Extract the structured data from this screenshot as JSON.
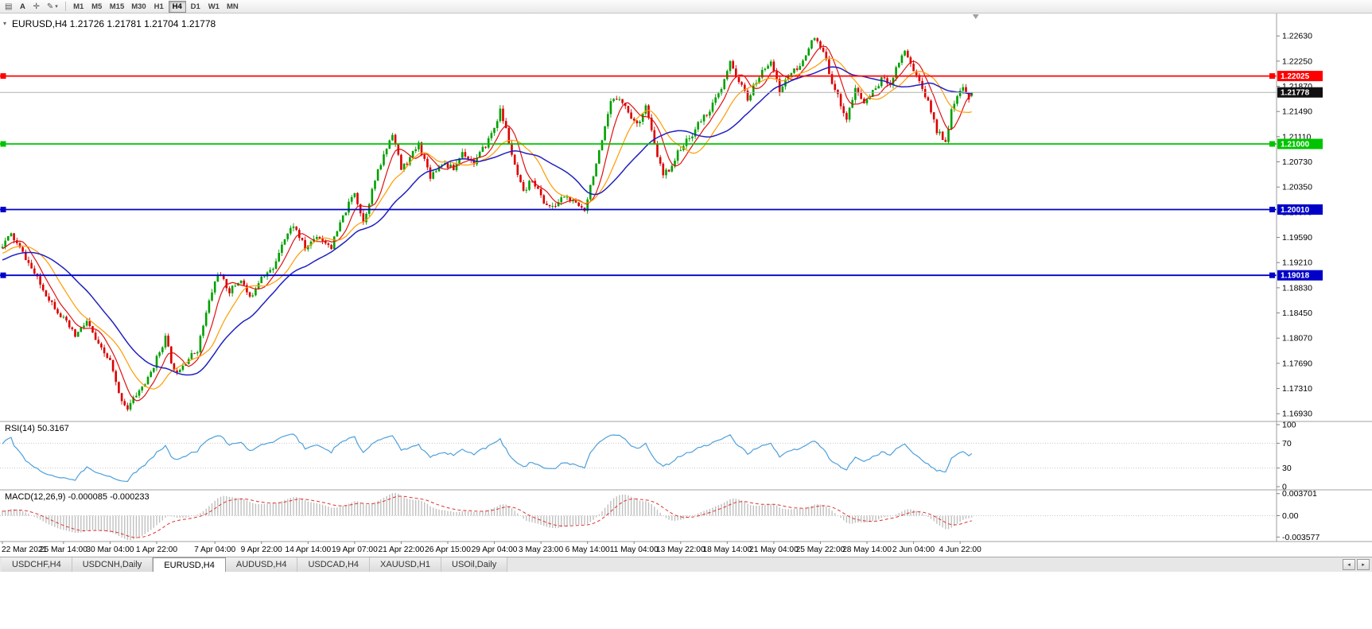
{
  "toolbar": {
    "icons": [
      {
        "name": "chart-windows-icon",
        "glyph": "▤"
      },
      {
        "name": "annotate-icon",
        "glyph": "A"
      },
      {
        "name": "crosshair-icon",
        "glyph": "✛"
      },
      {
        "name": "pencil-icon",
        "glyph": "✎"
      },
      {
        "name": "chevron-down-icon",
        "glyph": "▾"
      }
    ],
    "timeframes": [
      "M1",
      "M5",
      "M15",
      "M30",
      "H1",
      "H4",
      "D1",
      "W1",
      "MN"
    ],
    "active_timeframe": "H4"
  },
  "chart": {
    "caret_glyph": "▾",
    "title": "EURUSD,H4 1.21726 1.21781 1.21704 1.21778",
    "rsi_label": "RSI(14) 50.3167",
    "macd_label": "MACD(12,26,9) -0.000085 -0.000233"
  },
  "chart_data": {
    "type": "candlestick",
    "symbol": "EURUSD",
    "timeframe": "H4",
    "last_candle": {
      "open": 1.21726,
      "high": 1.21781,
      "low": 1.21704,
      "close": 1.21778
    },
    "current_price": {
      "value": 1.21778,
      "label": "1.21778"
    },
    "visible_price_range": [
      1.16813,
      1.22968
    ],
    "price_scale_ticks": [
      "1.22630",
      "1.22250",
      "1.21870",
      "1.21490",
      "1.21110",
      "1.20730",
      "1.20350",
      "1.19970",
      "1.19590",
      "1.19210",
      "1.18830",
      "1.18450",
      "1.18070",
      "1.17690",
      "1.17310",
      "1.16930"
    ],
    "levels": [
      {
        "value": 1.22025,
        "label": "1.22025",
        "color": "#ff0000"
      },
      {
        "value": 1.21,
        "label": "1.21000",
        "color": "#00c400"
      },
      {
        "value": 1.2001,
        "label": "1.20010",
        "color": "#0000c8"
      },
      {
        "value": 1.19018,
        "label": "1.19018",
        "color": "#0000c8"
      }
    ],
    "candle_colors": {
      "up": "#00a000",
      "down": "#dc0000"
    },
    "moving_averages": [
      {
        "period": 7,
        "color": "#e01010",
        "width": 1.2
      },
      {
        "period": 15,
        "color": "#ff9c00",
        "width": 1.2
      },
      {
        "period": 28,
        "color": "#2020c0",
        "width": 1.5
      }
    ],
    "bars_total": 334,
    "prehistory_bars": 60,
    "seed": 11,
    "price_path_anchors": [
      [
        -60,
        1.1885
      ],
      [
        -45,
        1.1925
      ],
      [
        -30,
        1.1898
      ],
      [
        -15,
        1.1922
      ],
      [
        0,
        1.1948
      ],
      [
        3,
        1.1963
      ],
      [
        8,
        1.1928
      ],
      [
        14,
        1.188
      ],
      [
        20,
        1.1842
      ],
      [
        25,
        1.181
      ],
      [
        29,
        1.1832
      ],
      [
        33,
        1.1795
      ],
      [
        37,
        1.1772
      ],
      [
        40,
        1.1722
      ],
      [
        43,
        1.1701
      ],
      [
        46,
        1.1722
      ],
      [
        50,
        1.1745
      ],
      [
        56,
        1.1808
      ],
      [
        59,
        1.1755
      ],
      [
        63,
        1.1772
      ],
      [
        67,
        1.179
      ],
      [
        71,
        1.1862
      ],
      [
        74,
        1.1906
      ],
      [
        78,
        1.1878
      ],
      [
        82,
        1.1896
      ],
      [
        85,
        1.1866
      ],
      [
        89,
        1.1902
      ],
      [
        93,
        1.191
      ],
      [
        96,
        1.1952
      ],
      [
        100,
        1.1978
      ],
      [
        104,
        1.1942
      ],
      [
        108,
        1.1962
      ],
      [
        113,
        1.1945
      ],
      [
        117,
        1.199
      ],
      [
        121,
        1.2028
      ],
      [
        124,
        1.1982
      ],
      [
        128,
        1.2045
      ],
      [
        131,
        1.2082
      ],
      [
        134,
        1.2118
      ],
      [
        137,
        1.2062
      ],
      [
        140,
        1.2078
      ],
      [
        143,
        1.21
      ],
      [
        147,
        1.2052
      ],
      [
        151,
        1.2072
      ],
      [
        155,
        1.2062
      ],
      [
        158,
        1.2088
      ],
      [
        162,
        1.2072
      ],
      [
        166,
        1.2098
      ],
      [
        169,
        1.2125
      ],
      [
        171,
        1.215
      ],
      [
        173,
        1.2122
      ],
      [
        176,
        1.2065
      ],
      [
        179,
        1.2025
      ],
      [
        182,
        1.2048
      ],
      [
        186,
        1.2012
      ],
      [
        189,
        1.2003
      ],
      [
        193,
        1.2022
      ],
      [
        197,
        1.2008
      ],
      [
        200,
        1.2002
      ],
      [
        203,
        1.2055
      ],
      [
        206,
        1.2102
      ],
      [
        209,
        1.2162
      ],
      [
        212,
        1.2172
      ],
      [
        215,
        1.2148
      ],
      [
        218,
        1.2128
      ],
      [
        221,
        1.2158
      ],
      [
        224,
        1.2098
      ],
      [
        227,
        1.2052
      ],
      [
        230,
        1.2068
      ],
      [
        233,
        1.2095
      ],
      [
        236,
        1.2108
      ],
      [
        239,
        1.213
      ],
      [
        243,
        1.2152
      ],
      [
        247,
        1.2182
      ],
      [
        250,
        1.2222
      ],
      [
        253,
        1.2195
      ],
      [
        256,
        1.2168
      ],
      [
        260,
        1.2202
      ],
      [
        264,
        1.2228
      ],
      [
        267,
        1.2178
      ],
      [
        270,
        1.2205
      ],
      [
        274,
        1.2215
      ],
      [
        277,
        1.2248
      ],
      [
        279,
        1.2258
      ],
      [
        282,
        1.2238
      ],
      [
        285,
        1.2195
      ],
      [
        288,
        1.216
      ],
      [
        290,
        1.2138
      ],
      [
        293,
        1.2182
      ],
      [
        296,
        1.2162
      ],
      [
        299,
        1.2178
      ],
      [
        302,
        1.2198
      ],
      [
        305,
        1.2192
      ],
      [
        308,
        1.2225
      ],
      [
        310,
        1.2242
      ],
      [
        313,
        1.2212
      ],
      [
        316,
        1.2185
      ],
      [
        319,
        1.215
      ],
      [
        321,
        1.212
      ],
      [
        324,
        1.2106
      ],
      [
        326,
        1.2148
      ],
      [
        328,
        1.2172
      ],
      [
        330,
        1.2182
      ],
      [
        332,
        1.217
      ],
      [
        333,
        1.21778
      ]
    ],
    "time_axis": [
      {
        "label": "22 Mar 2021",
        "bar": 0
      },
      {
        "label": "25 Mar 14:00",
        "bar": 21
      },
      {
        "label": "30 Mar 04:00",
        "bar": 37
      },
      {
        "label": "1 Apr 22:00",
        "bar": 53
      },
      {
        "label": "7 Apr 04:00",
        "bar": 73
      },
      {
        "label": "9 Apr 22:00",
        "bar": 89
      },
      {
        "label": "14 Apr 14:00",
        "bar": 105
      },
      {
        "label": "19 Apr 07:00",
        "bar": 121
      },
      {
        "label": "21 Apr 22:00",
        "bar": 137
      },
      {
        "label": "26 Apr 15:00",
        "bar": 153
      },
      {
        "label": "29 Apr 04:00",
        "bar": 169
      },
      {
        "label": "3 May 23:00",
        "bar": 185
      },
      {
        "label": "6 May 14:00",
        "bar": 201
      },
      {
        "label": "11 May 04:00",
        "bar": 217
      },
      {
        "label": "13 May 22:00",
        "bar": 233
      },
      {
        "label": "18 May 14:00",
        "bar": 249
      },
      {
        "label": "21 May 04:00",
        "bar": 265
      },
      {
        "label": "25 May 22:00",
        "bar": 281
      },
      {
        "label": "28 May 14:00",
        "bar": 297
      },
      {
        "label": "2 Jun 04:00",
        "bar": 313
      },
      {
        "label": "4 Jun 22:00",
        "bar": 329
      }
    ],
    "rsi": {
      "period": 14,
      "current": 50.3167,
      "color": "#4da0dc",
      "guide_levels": [
        70,
        30
      ],
      "scale": [
        {
          "label": "100",
          "value": 100
        },
        {
          "label": "70",
          "value": 70
        },
        {
          "label": "30",
          "value": 30
        },
        {
          "label": "0",
          "value": 0
        }
      ]
    },
    "macd": {
      "fast": 12,
      "slow": 26,
      "signal": 9,
      "macd_current": -8.5e-05,
      "signal_current": -0.000233,
      "histogram_color": "#c0c0c0",
      "signal_color": "#e03030",
      "scale": [
        {
          "label": "0.003701",
          "value": 0.003701
        },
        {
          "label": "0.00",
          "value": 0
        },
        {
          "label": "-0.003577",
          "value": -0.003577
        }
      ]
    }
  },
  "tabs": {
    "items": [
      {
        "label": "USDCHF,H4"
      },
      {
        "label": "USDCNH,Daily"
      },
      {
        "label": "EURUSD,H4",
        "active": true
      },
      {
        "label": "AUDUSD,H4"
      },
      {
        "label": "USDCAD,H4"
      },
      {
        "label": "XAUUSD,H1"
      },
      {
        "label": "USOil,Daily"
      }
    ],
    "scroll_left_icon": "◂",
    "scroll_right_icon": "▸"
  }
}
